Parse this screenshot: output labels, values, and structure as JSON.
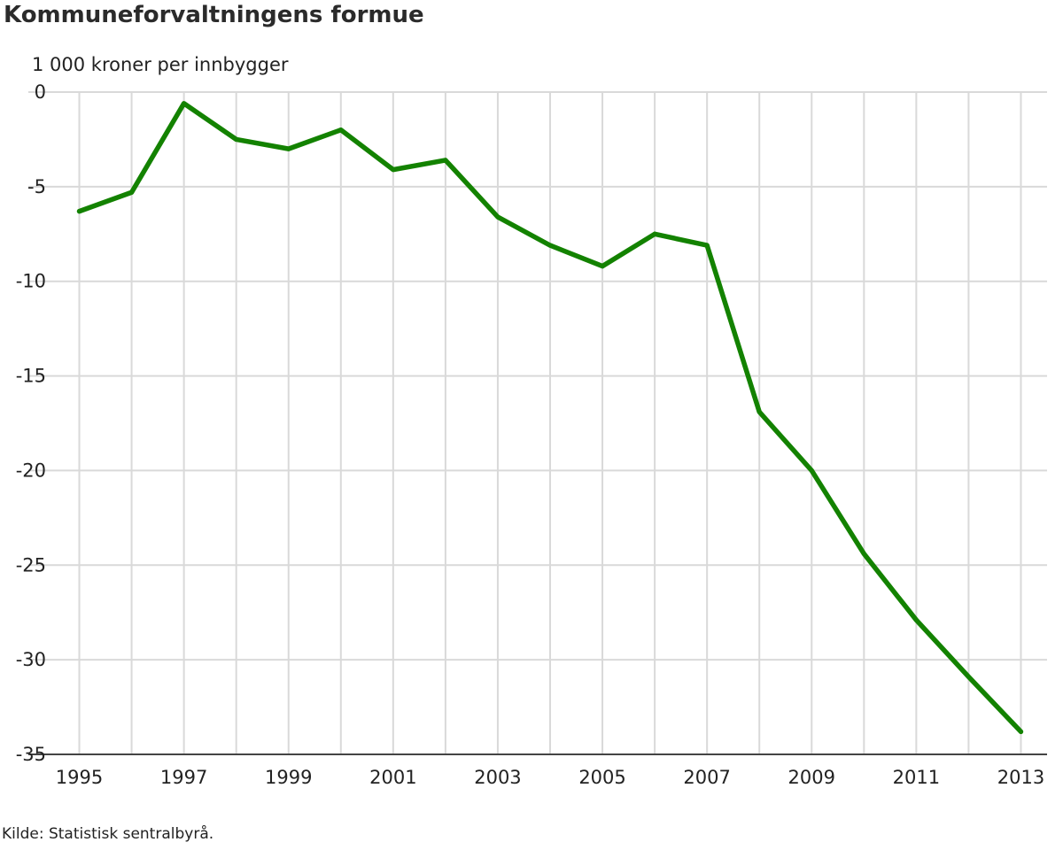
{
  "title": "Kommuneforvaltningens formue",
  "unit_label": "1 000 kroner per innbygger",
  "source": "Kilde: Statistisk sentralbyrå.",
  "chart_data": {
    "type": "line",
    "title": "Kommuneforvaltningens formue",
    "ylabel": "1 000 kroner per innbygger",
    "xlabel": "",
    "x": [
      1995,
      1996,
      1997,
      1998,
      1999,
      2000,
      2001,
      2002,
      2003,
      2004,
      2005,
      2006,
      2007,
      2008,
      2009,
      2010,
      2011,
      2012,
      2013
    ],
    "series": [
      {
        "color": "#138200",
        "values": [
          -6.3,
          -5.3,
          -0.6,
          -2.5,
          -3.0,
          -2.0,
          -4.1,
          -3.6,
          -6.6,
          -8.1,
          -9.2,
          -7.5,
          -8.1,
          -16.9,
          -20.0,
          -24.4,
          -27.9,
          -30.9,
          -33.8
        ]
      }
    ],
    "xticks": [
      "1995",
      "1997",
      "1999",
      "2001",
      "2003",
      "2005",
      "2007",
      "2009",
      "2011",
      "2013"
    ],
    "yticks": [
      "0",
      "-5",
      "-10",
      "-15",
      "-20",
      "-25",
      "-30",
      "-35"
    ],
    "ylim": [
      -35,
      0
    ],
    "xlim": [
      1994.5,
      2013.5
    ],
    "grid": true,
    "legend": "none"
  }
}
